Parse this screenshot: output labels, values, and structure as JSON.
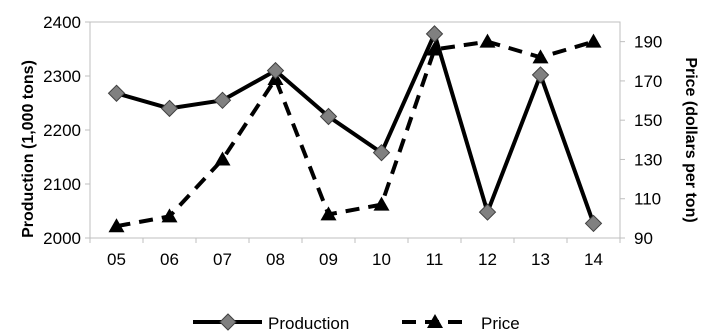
{
  "chart_data": {
    "type": "line",
    "categories": [
      "05",
      "06",
      "07",
      "08",
      "09",
      "10",
      "11",
      "12",
      "13",
      "14"
    ],
    "series": [
      {
        "name": "Production",
        "axis": "left",
        "style": "solid",
        "marker": "diamond",
        "color": "#000000",
        "marker_color": "#808080",
        "values": [
          2268,
          2240,
          2255,
          2310,
          2225,
          2158,
          2378,
          2048,
          2302,
          2027
        ]
      },
      {
        "name": "Price",
        "axis": "right",
        "style": "dashed",
        "marker": "triangle",
        "color": "#000000",
        "marker_color": "#000000",
        "values": [
          96,
          101,
          130,
          171,
          102,
          107,
          186,
          190,
          182,
          190
        ]
      }
    ],
    "ylabel": "Production (1,000 tons)",
    "ylabel_right": "Price (dollars per ton)",
    "ylim": [
      2000,
      2400
    ],
    "ylim_right": [
      90,
      200
    ],
    "yticks": [
      "2000",
      "2100",
      "2200",
      "2300",
      "2400"
    ],
    "yticks_right": [
      "90",
      "110",
      "130",
      "150",
      "170",
      "190"
    ],
    "grid": false,
    "legend": "bottom"
  }
}
